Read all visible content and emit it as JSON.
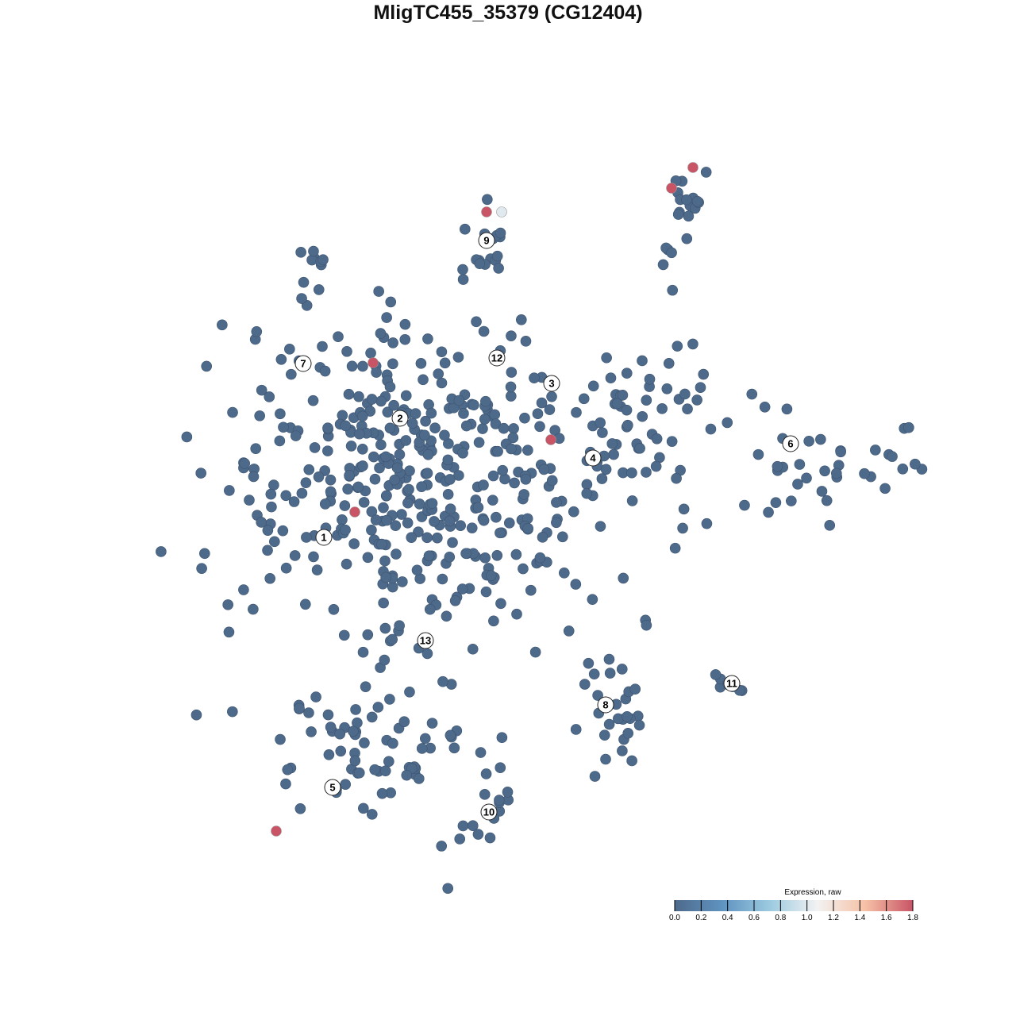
{
  "chart_data": {
    "type": "scatter",
    "title": "MligTC455_35379 (CG12404)",
    "xlabel": "",
    "ylabel": "",
    "axes_visible": false,
    "grid": false,
    "xlim": [
      -48,
      52
    ],
    "ylim": [
      -50,
      50
    ],
    "point_color_default": "#4e6a8b",
    "background_cells": [
      {
        "center": [
          -12,
          4
        ],
        "spread": [
          15,
          13
        ],
        "n": 430
      },
      {
        "center": [
          -17,
          -30
        ],
        "spread": [
          8,
          7
        ],
        "n": 70
      },
      {
        "center": [
          -3,
          -38
        ],
        "spread": [
          2.5,
          3
        ],
        "n": 14
      },
      {
        "center": [
          13,
          -25
        ],
        "spread": [
          3,
          5
        ],
        "n": 28
      },
      {
        "center": [
          28.2,
          -22
        ],
        "spread": [
          1.2,
          1
        ],
        "n": 8
      },
      {
        "center": [
          38,
          6
        ],
        "spread": [
          8,
          5
        ],
        "n": 40
      },
      {
        "center": [
          17,
          13
        ],
        "spread": [
          6,
          7
        ],
        "n": 50
      },
      {
        "center": [
          22,
          38
        ],
        "spread": [
          2,
          3
        ],
        "n": 16
      },
      {
        "center": [
          -2.7,
          33
        ],
        "spread": [
          2,
          2.5
        ],
        "n": 16
      },
      {
        "center": [
          -24,
          31
        ],
        "spread": [
          1.5,
          1
        ],
        "n": 7
      },
      {
        "center": [
          20,
          31
        ],
        "spread": [
          1,
          4
        ],
        "n": 4
      }
    ],
    "highlighted_cells": [
      {
        "x": -2.7,
        "y": 37.3,
        "expression": 1.8
      },
      {
        "x": -0.8,
        "y": 37.3,
        "expression": 1.0
      },
      {
        "x": -17.0,
        "y": 18.3,
        "expression": 1.8
      },
      {
        "x": 5.4,
        "y": 8.6,
        "expression": 1.8
      },
      {
        "x": -19.3,
        "y": -0.5,
        "expression": 1.8
      },
      {
        "x": -29.2,
        "y": -40.7,
        "expression": 1.8
      },
      {
        "x": 20.6,
        "y": 40.3,
        "expression": 1.8
      },
      {
        "x": 23.3,
        "y": 42.9,
        "expression": 1.8
      }
    ],
    "cluster_labels": [
      {
        "label": "1",
        "x": -23.2,
        "y": -3.7
      },
      {
        "label": "2",
        "x": -13.6,
        "y": 11.3
      },
      {
        "label": "3",
        "x": 5.5,
        "y": 15.7
      },
      {
        "label": "4",
        "x": 10.7,
        "y": 6.3
      },
      {
        "label": "5",
        "x": -22.1,
        "y": -35.2
      },
      {
        "label": "6",
        "x": 35.6,
        "y": 8.1
      },
      {
        "label": "7",
        "x": -25.8,
        "y": 18.2
      },
      {
        "label": "8",
        "x": 12.3,
        "y": -24.8
      },
      {
        "label": "9",
        "x": -2.7,
        "y": 33.7
      },
      {
        "label": "10",
        "x": -2.4,
        "y": -38.3
      },
      {
        "label": "11",
        "x": 28.2,
        "y": -22.1
      },
      {
        "label": "12",
        "x": -1.4,
        "y": 18.9
      },
      {
        "label": "13",
        "x": -10.4,
        "y": -16.7
      }
    ],
    "legend": {
      "title": "Expression, raw",
      "placement": "bottom-right",
      "range": [
        0,
        1.8
      ],
      "ticks": [
        "0.0",
        "0.2",
        "0.4",
        "0.6",
        "0.8",
        "1.0",
        "1.2",
        "1.4",
        "1.6",
        "1.8"
      ],
      "colors": [
        "#4e6a8b",
        "#5f93c0",
        "#9ccae0",
        "#f2f2f2",
        "#f6c1a6",
        "#c85466"
      ]
    }
  }
}
